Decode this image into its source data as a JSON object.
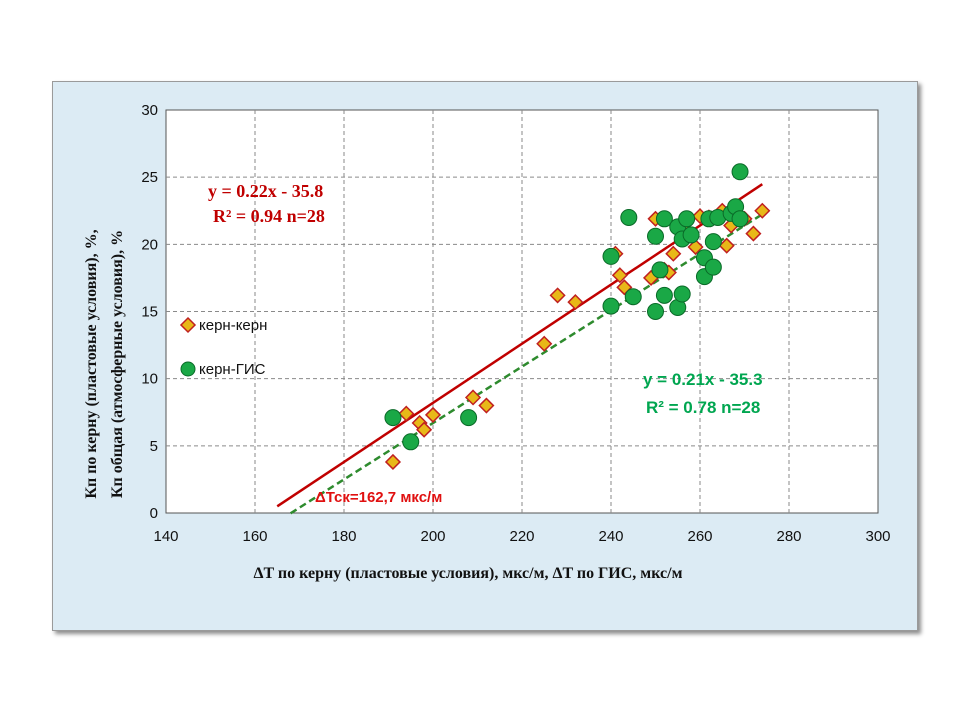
{
  "chart_data": {
    "type": "scatter",
    "xlabel": "ΔT по керну (пластовые условия), мкс/м, ΔT по ГИС, мкс/м",
    "ylabel": [
      "Кп по керну (пластовые условия), %,",
      "Кп общая (атмосферные условия), %"
    ],
    "xlim": [
      140,
      300
    ],
    "ylim": [
      0,
      30
    ],
    "xticks": [
      "140",
      "160",
      "180",
      "200",
      "220",
      "240",
      "260",
      "280",
      "300"
    ],
    "yticks": [
      "0",
      "5",
      "10",
      "15",
      "20",
      "25",
      "30"
    ],
    "grid": "dashed",
    "legend": "left-middle",
    "series": [
      {
        "name": "керн-керн",
        "marker": "diamond",
        "color": "#e8b818",
        "edge": "#c02020",
        "points": [
          [
            191,
            3.8
          ],
          [
            194,
            7.4
          ],
          [
            197,
            6.7
          ],
          [
            198,
            6.2
          ],
          [
            200,
            7.3
          ],
          [
            209,
            8.6
          ],
          [
            212,
            8.0
          ],
          [
            225,
            12.6
          ],
          [
            228,
            16.2
          ],
          [
            232,
            15.7
          ],
          [
            241,
            19.3
          ],
          [
            242,
            17.7
          ],
          [
            243,
            16.8
          ],
          [
            249,
            17.5
          ],
          [
            250,
            21.9
          ],
          [
            252,
            18.1
          ],
          [
            253,
            17.9
          ],
          [
            254,
            19.3
          ],
          [
            257,
            20.9
          ],
          [
            259,
            19.8
          ],
          [
            260,
            22.1
          ],
          [
            262,
            22.0
          ],
          [
            265,
            22.5
          ],
          [
            266,
            19.9
          ],
          [
            267,
            21.4
          ],
          [
            270,
            21.9
          ],
          [
            272,
            20.8
          ],
          [
            274,
            22.5
          ]
        ]
      },
      {
        "name": "керн-ГИС",
        "marker": "circle",
        "color": "#1aa846",
        "edge": "#0a6a28",
        "points": [
          [
            191,
            7.1
          ],
          [
            195,
            5.3
          ],
          [
            208,
            7.1
          ],
          [
            240,
            19.1
          ],
          [
            240,
            15.4
          ],
          [
            244,
            22.0
          ],
          [
            245,
            16.1
          ],
          [
            250,
            15.0
          ],
          [
            250,
            20.6
          ],
          [
            251,
            18.1
          ],
          [
            252,
            21.9
          ],
          [
            252,
            16.2
          ],
          [
            255,
            21.3
          ],
          [
            255,
            15.3
          ],
          [
            256,
            20.4
          ],
          [
            256,
            16.3
          ],
          [
            257,
            21.9
          ],
          [
            258,
            20.7
          ],
          [
            261,
            19.0
          ],
          [
            261,
            17.6
          ],
          [
            262,
            21.9
          ],
          [
            263,
            20.2
          ],
          [
            263,
            18.3
          ],
          [
            264,
            22.0
          ],
          [
            267,
            22.3
          ],
          [
            268,
            22.8
          ],
          [
            269,
            21.9
          ],
          [
            269,
            25.4
          ]
        ]
      }
    ],
    "trendlines": [
      {
        "series": "керн-керн",
        "slope": 0.22,
        "intercept": -35.8,
        "x_from": 165,
        "x_to": 274,
        "color": "#c00000",
        "style": "solid"
      },
      {
        "series": "керн-ГИС",
        "slope": 0.21,
        "intercept": -35.3,
        "x_from": 168,
        "x_to": 274,
        "color": "#2e8b2e",
        "style": "dashed"
      }
    ],
    "annotations": {
      "eq_red_1": "y = 0.22x - 35.8",
      "eq_red_2": "R² = 0.94 n=28",
      "eq_green_1": "y = 0.21x - 35.3",
      "eq_green_2": "R² = 0.78 n=28",
      "dt": "ΔТск=162,7 мкс/м"
    }
  }
}
